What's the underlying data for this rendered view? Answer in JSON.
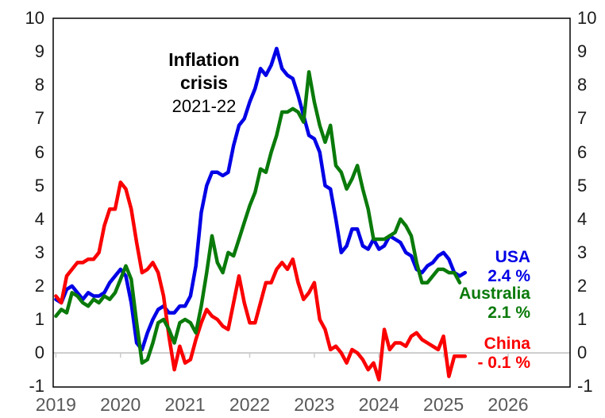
{
  "chart_data": {
    "type": "line",
    "title": "",
    "annotation": [
      "Inflation",
      "crisis",
      "2021-22"
    ],
    "x_start": "2019-01",
    "x_axis_months": 96,
    "x_tick_labels": [
      "2019",
      "2020",
      "2021",
      "2022",
      "2023",
      "2024",
      "2025",
      "2026"
    ],
    "y_ticks": [
      "10",
      "9",
      "8",
      "7",
      "6",
      "5",
      "4",
      "3",
      "2",
      "1",
      "0",
      "-1"
    ],
    "ylim": [
      -1,
      10
    ],
    "grid": "zero-line-only",
    "legend_position": "end-of-line-labels",
    "colors": {
      "zero_line": "#CCCCCC",
      "axis_text": "#1A1A1A",
      "year_text": "#595959",
      "border": "#000000"
    },
    "series": [
      {
        "id": "usa",
        "label": "USA",
        "value_label": "2.4 %",
        "color": "#0000E6",
        "unit": "% CPI year-over-year, monthly",
        "values": [
          1.6,
          1.5,
          1.9,
          2.0,
          1.8,
          1.6,
          1.8,
          1.7,
          1.7,
          1.8,
          2.1,
          2.3,
          2.5,
          2.3,
          1.5,
          0.3,
          0.1,
          0.6,
          1.0,
          1.3,
          1.4,
          1.2,
          1.2,
          1.4,
          1.4,
          1.7,
          2.6,
          4.2,
          5.0,
          5.4,
          5.4,
          5.3,
          5.4,
          6.2,
          6.8,
          7.0,
          7.5,
          7.9,
          8.5,
          8.3,
          8.6,
          9.1,
          8.5,
          8.3,
          8.2,
          7.7,
          7.1,
          6.5,
          6.4,
          6.0,
          5.0,
          4.9,
          4.0,
          3.0,
          3.2,
          3.7,
          3.7,
          3.2,
          3.1,
          3.4,
          3.1,
          3.2,
          3.5,
          3.4,
          3.3,
          3.0,
          2.9,
          2.5,
          2.4,
          2.6,
          2.7,
          2.9,
          3.0,
          2.8,
          2.4,
          2.3,
          2.4
        ]
      },
      {
        "id": "china",
        "label": "China",
        "value_label": "- 0.1 %",
        "color": "#FA0000",
        "unit": "% CPI year-over-year, monthly",
        "values": [
          1.7,
          1.5,
          2.3,
          2.5,
          2.7,
          2.7,
          2.8,
          2.8,
          3.0,
          3.8,
          4.3,
          4.3,
          5.1,
          4.9,
          4.3,
          3.3,
          2.4,
          2.5,
          2.7,
          2.4,
          1.7,
          0.5,
          -0.5,
          0.2,
          -0.3,
          -0.2,
          0.4,
          0.9,
          1.3,
          1.1,
          1.0,
          0.8,
          0.7,
          1.5,
          2.3,
          1.5,
          0.9,
          0.9,
          1.5,
          2.1,
          2.1,
          2.5,
          2.7,
          2.5,
          2.8,
          2.1,
          1.6,
          1.8,
          2.1,
          1.0,
          0.7,
          0.1,
          0.2,
          0.0,
          -0.3,
          0.1,
          0.0,
          -0.2,
          -0.5,
          -0.3,
          -0.8,
          0.7,
          0.1,
          0.3,
          0.3,
          0.2,
          0.5,
          0.6,
          0.4,
          0.3,
          0.2,
          0.1,
          0.5,
          -0.7,
          -0.1,
          -0.1,
          -0.1
        ]
      },
      {
        "id": "australia",
        "label": "Australia",
        "value_label": "2.1 %",
        "color": "#0A7A0A",
        "unit": "% CPI year-over-year, monthly",
        "values": [
          1.1,
          1.3,
          1.2,
          1.8,
          1.7,
          1.5,
          1.4,
          1.6,
          1.5,
          1.7,
          1.6,
          1.8,
          2.2,
          2.6,
          2.2,
          0.9,
          -0.3,
          -0.2,
          0.3,
          0.9,
          1.0,
          0.7,
          0.3,
          0.9,
          1.0,
          0.9,
          0.6,
          1.4,
          2.4,
          3.5,
          2.7,
          2.4,
          3.0,
          2.9,
          3.4,
          3.9,
          4.4,
          4.8,
          5.5,
          5.4,
          6.0,
          6.5,
          7.2,
          7.2,
          7.3,
          7.2,
          6.9,
          8.4,
          7.5,
          6.8,
          6.3,
          6.8,
          5.6,
          5.4,
          4.9,
          5.2,
          5.6,
          4.9,
          4.3,
          3.4,
          3.4,
          3.4,
          3.5,
          3.6,
          4.0,
          3.8,
          3.5,
          2.7,
          2.1,
          2.1,
          2.3,
          2.5,
          2.5,
          2.4,
          2.4,
          2.1
        ]
      }
    ]
  }
}
